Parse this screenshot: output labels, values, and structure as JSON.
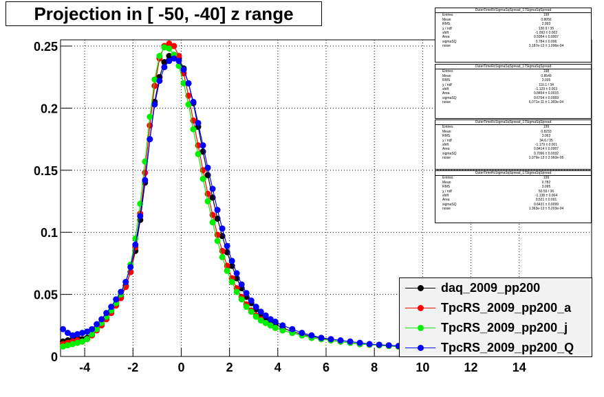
{
  "title": "Projection in [ -50, -40] z range",
  "chart_data": {
    "type": "scatter",
    "xlim": [
      -5,
      17
    ],
    "ylim": [
      0,
      0.255
    ],
    "x_ticks": [
      -4,
      -2,
      0,
      2,
      4,
      6,
      8,
      10,
      12,
      14
    ],
    "y_ticks": [
      0,
      0.05,
      0.1,
      0.15,
      0.2,
      0.25
    ],
    "x_tick_labels": [
      "-4",
      "-2",
      "0",
      "2",
      "4",
      "6",
      "8",
      "10",
      "12",
      "14"
    ],
    "y_tick_labels": [
      "0",
      "0.05",
      "0.1",
      "0.15",
      "0.2",
      "0.25"
    ],
    "grid": true,
    "legend_position": "bottom-right",
    "x": [
      -4.9,
      -4.7,
      -4.5,
      -4.3,
      -4.1,
      -3.9,
      -3.7,
      -3.5,
      -3.3,
      -3.1,
      -2.9,
      -2.7,
      -2.5,
      -2.3,
      -2.1,
      -1.9,
      -1.7,
      -1.5,
      -1.3,
      -1.1,
      -0.9,
      -0.7,
      -0.5,
      -0.3,
      -0.1,
      0.1,
      0.3,
      0.5,
      0.7,
      0.9,
      1.1,
      1.3,
      1.5,
      1.7,
      1.9,
      2.1,
      2.3,
      2.5,
      2.7,
      2.9,
      3.1,
      3.3,
      3.5,
      3.7,
      3.9,
      4.2,
      4.6,
      5.0,
      5.4,
      5.8,
      6.2,
      6.6,
      7.0,
      7.4,
      7.8,
      8.2,
      8.6,
      9.0
    ],
    "series": [
      {
        "name": "daq_2009_pp200",
        "color": "#000000",
        "values": [
          0.012,
          0.013,
          0.014,
          0.015,
          0.014,
          0.015,
          0.018,
          0.022,
          0.026,
          0.031,
          0.036,
          0.042,
          0.048,
          0.057,
          0.068,
          0.085,
          0.11,
          0.14,
          0.175,
          0.205,
          0.225,
          0.237,
          0.242,
          0.243,
          0.24,
          0.232,
          0.22,
          0.204,
          0.185,
          0.165,
          0.146,
          0.128,
          0.111,
          0.097,
          0.084,
          0.073,
          0.063,
          0.055,
          0.048,
          0.043,
          0.038,
          0.034,
          0.031,
          0.028,
          0.026,
          0.023,
          0.02,
          0.018,
          0.016,
          0.015,
          0.013,
          0.012,
          0.011,
          0.01,
          0.0095,
          0.009,
          0.0085,
          0.008
        ]
      },
      {
        "name": "TpcRS_2009_pp200_a",
        "color": "#ff0000",
        "values": [
          0.01,
          0.011,
          0.012,
          0.013,
          0.012,
          0.014,
          0.017,
          0.021,
          0.025,
          0.03,
          0.035,
          0.041,
          0.047,
          0.056,
          0.068,
          0.088,
          0.115,
          0.148,
          0.186,
          0.218,
          0.24,
          0.25,
          0.252,
          0.25,
          0.242,
          0.228,
          0.21,
          0.19,
          0.17,
          0.15,
          0.131,
          0.114,
          0.098,
          0.085,
          0.073,
          0.063,
          0.055,
          0.048,
          0.042,
          0.037,
          0.033,
          0.03,
          0.027,
          0.025,
          0.023,
          0.021,
          0.019,
          0.017,
          0.015,
          0.014,
          0.013,
          0.012,
          0.011,
          0.01,
          0.0095,
          0.009,
          0.0085,
          0.008
        ]
      },
      {
        "name": "TpcRS_2009_pp200_j",
        "color": "#00ee00",
        "values": [
          0.008,
          0.009,
          0.01,
          0.011,
          0.012,
          0.014,
          0.018,
          0.022,
          0.027,
          0.032,
          0.037,
          0.043,
          0.05,
          0.06,
          0.074,
          0.095,
          0.123,
          0.157,
          0.193,
          0.223,
          0.242,
          0.249,
          0.248,
          0.243,
          0.234,
          0.22,
          0.203,
          0.183,
          0.163,
          0.143,
          0.125,
          0.108,
          0.093,
          0.08,
          0.069,
          0.06,
          0.052,
          0.046,
          0.04,
          0.036,
          0.032,
          0.029,
          0.027,
          0.025,
          0.023,
          0.021,
          0.019,
          0.017,
          0.015,
          0.014,
          0.013,
          0.012,
          0.011,
          0.01,
          0.0095,
          0.009,
          0.0085,
          0.008
        ]
      },
      {
        "name": "TpcRS_2009_pp200_Q",
        "color": "#0000ff",
        "values": [
          0.022,
          0.019,
          0.017,
          0.018,
          0.019,
          0.02,
          0.022,
          0.026,
          0.03,
          0.035,
          0.04,
          0.046,
          0.052,
          0.06,
          0.072,
          0.09,
          0.113,
          0.142,
          0.175,
          0.203,
          0.222,
          0.233,
          0.238,
          0.24,
          0.238,
          0.231,
          0.22,
          0.205,
          0.188,
          0.17,
          0.152,
          0.135,
          0.118,
          0.103,
          0.089,
          0.077,
          0.067,
          0.058,
          0.051,
          0.045,
          0.04,
          0.036,
          0.033,
          0.03,
          0.028,
          0.025,
          0.022,
          0.019,
          0.017,
          0.015,
          0.014,
          0.013,
          0.012,
          0.011,
          0.01,
          0.0095,
          0.009,
          0.0085
        ]
      }
    ]
  },
  "stats_boxes": [
    {
      "header": "OuterTimeRcSigmaSqSpread_17SigmaSqSpread",
      "rows": [
        {
          "k": "Entries",
          "v": "199"
        },
        {
          "k": "Mean",
          "v": "0.8056"
        },
        {
          "k": "RMS",
          "v": "2.993"
        },
        {
          "k": "χ  / ndf",
          "v": "130.9 / 35"
        },
        {
          "k": "shift",
          "v": "-1.093 ± 0.002"
        },
        {
          "k": "Area",
          "v": "0.5954 ± 0.0007"
        },
        {
          "k": "sigmaSQ",
          "v": "0.784 ± 0.006"
        },
        {
          "k": "noise",
          "v": "3.187e-13 ± 1.096e-04"
        }
      ]
    },
    {
      "header": "OuterTimeRcSigmaSqSpread_17SigmaSqSpread",
      "rows": [
        {
          "k": "Entries",
          "v": "198"
        },
        {
          "k": "Mean",
          "v": "0.8549"
        },
        {
          "k": "RMS",
          "v": "3.035"
        },
        {
          "k": "χ  / ndf",
          "v": "110.1 / 34"
        },
        {
          "k": "shift",
          "v": "-1.129 ± 0.003"
        },
        {
          "k": "Area",
          "v": "0.8454 ± 0.0015"
        },
        {
          "k": "sigmaSQ",
          "v": "0.6794 ± 0.0069"
        },
        {
          "k": "noise",
          "v": "6.071e-11 ± 1.369e-04"
        }
      ]
    },
    {
      "header": "OuterTimeRcSigmaSqSpread_17SigmaSqSpread",
      "rows": [
        {
          "k": "Entries",
          "v": "199"
        },
        {
          "k": "Mean",
          "v": "0.8233"
        },
        {
          "k": "RMS",
          "v": "3.063"
        },
        {
          "k": "χ  / ndf",
          "v": "34.6 / 35"
        },
        {
          "k": "shift",
          "v": "-1.179 ± 0.001"
        },
        {
          "k": "Area",
          "v": "0.8414 ± 0.0007"
        },
        {
          "k": "sigmaSQ",
          "v": "0.7096 ± 0.0032"
        },
        {
          "k": "noise",
          "v": "1.079e-13 ± 2.960e-05"
        }
      ]
    },
    {
      "header": "OuterTimeRcSigmaSqSpread_17SigmaSqSpread",
      "rows": [
        {
          "k": "Entries",
          "v": "199"
        },
        {
          "k": "Mean",
          "v": "0.782"
        },
        {
          "k": "RMS",
          "v": "3.095"
        },
        {
          "k": "χ  / ndf",
          "v": "50.59 / 36"
        },
        {
          "k": "shift",
          "v": "-1.138 ± 0.004"
        },
        {
          "k": "Area",
          "v": "0.521 ± 0.001"
        },
        {
          "k": "sigmaSQ",
          "v": "0.6431 ± 0.0099"
        },
        {
          "k": "noise",
          "v": "1.363e-13 ± 5.203e-04"
        }
      ]
    }
  ]
}
